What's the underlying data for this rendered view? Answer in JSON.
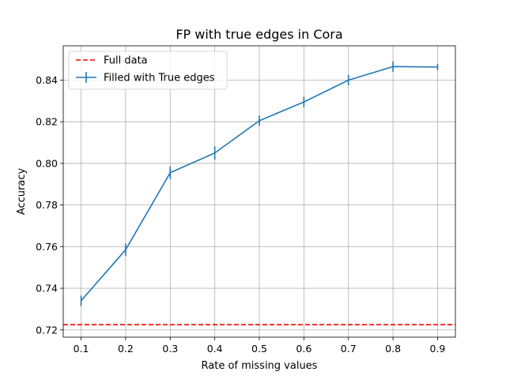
{
  "chart_data": {
    "type": "line",
    "title": "FP with true edges in Cora",
    "xlabel": "Rate of missing values",
    "ylabel": "Accuracy",
    "xlim": [
      0.06,
      0.94
    ],
    "ylim": [
      0.7165,
      0.8565
    ],
    "xticks": [
      0.1,
      0.2,
      0.3,
      0.4,
      0.5,
      0.6,
      0.7,
      0.8,
      0.9
    ],
    "xtick_labels": [
      "0.1",
      "0.2",
      "0.3",
      "0.4",
      "0.5",
      "0.6",
      "0.7",
      "0.8",
      "0.9"
    ],
    "yticks": [
      0.72,
      0.74,
      0.76,
      0.78,
      0.8,
      0.82,
      0.84
    ],
    "ytick_labels": [
      "0.72",
      "0.74",
      "0.76",
      "0.78",
      "0.80",
      "0.82",
      "0.84"
    ],
    "grid": true,
    "legend_position": "top-left",
    "series": [
      {
        "name": "Full data",
        "kind": "hline",
        "style": "dashed",
        "color": "#ff0000",
        "y": 0.7225
      },
      {
        "name": "Filled with True edges",
        "kind": "errorbar-line",
        "style": "solid",
        "color": "#1f77b4",
        "x": [
          0.1,
          0.2,
          0.3,
          0.4,
          0.5,
          0.6,
          0.7,
          0.8,
          0.9
        ],
        "y": [
          0.734,
          0.7585,
          0.7955,
          0.805,
          0.8205,
          0.8295,
          0.84,
          0.8465,
          0.8463
        ],
        "yerr": [
          0.0025,
          0.003,
          0.003,
          0.0032,
          0.0025,
          0.0025,
          0.0025,
          0.0025,
          0.0015
        ]
      }
    ]
  }
}
